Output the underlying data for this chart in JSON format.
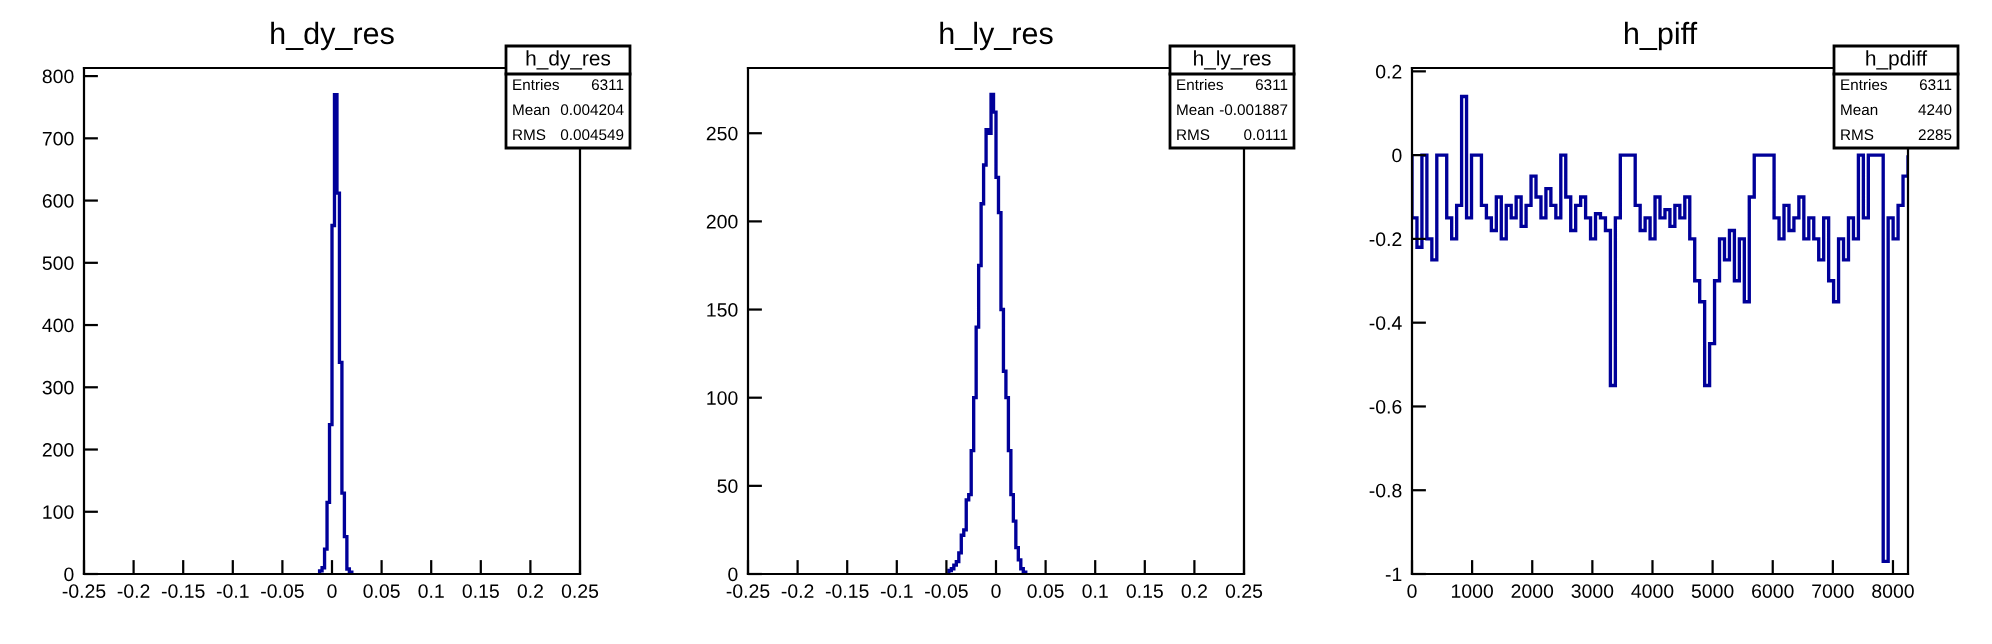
{
  "chart_data": [
    {
      "type": "histogram",
      "title": "h_dy_res",
      "color": "#000099",
      "annotations": [
        "h_dy_res",
        "Entries",
        "6311",
        "Mean",
        "0.004204",
        "RMS",
        "0.004549"
      ],
      "bins": [
        -0.0125,
        -0.01,
        -0.0075,
        -0.005,
        -0.0025,
        0,
        0.0025,
        0.005,
        0.0075,
        0.01,
        0.0125,
        0.015,
        0.0175,
        0.02
      ],
      "values": [
        5,
        10,
        40,
        115,
        240,
        560,
        770,
        612,
        340,
        130,
        60,
        8,
        3
      ],
      "xlim": [
        -0.25,
        0.25
      ],
      "xticks": [
        -0.25,
        -0.2,
        -0.15,
        -0.1,
        -0.05,
        0,
        0.05,
        0.1,
        0.15,
        0.2,
        0.25
      ],
      "ylim": [
        0,
        813
      ],
      "yticks": [
        0,
        100,
        200,
        300,
        400,
        500,
        600,
        700,
        800
      ],
      "grid": false,
      "legend": false
    },
    {
      "type": "histogram",
      "title": "h_ly_res",
      "color": "#000099",
      "annotations": [
        "h_ly_res",
        "Entries",
        "6311",
        "Mean",
        "-0.001887",
        "RMS",
        "0.0111"
      ],
      "bins": [
        -0.0475,
        -0.045,
        -0.0425,
        -0.04,
        -0.0375,
        -0.035,
        -0.0325,
        -0.03,
        -0.0275,
        -0.025,
        -0.0225,
        -0.02,
        -0.0175,
        -0.015,
        -0.0125,
        -0.01,
        -0.0075,
        -0.005,
        -0.0025,
        0,
        0.0025,
        0.005,
        0.0075,
        0.01,
        0.0125,
        0.015,
        0.0175,
        0.02,
        0.0225,
        0.025,
        0.0275,
        0.03
      ],
      "values": [
        2,
        3,
        5,
        7,
        12,
        22,
        25,
        42,
        45,
        70,
        100,
        140,
        175,
        210,
        232,
        252,
        250,
        272,
        262,
        225,
        205,
        150,
        115,
        100,
        70,
        45,
        30,
        15,
        8,
        3,
        1
      ],
      "xlim": [
        -0.25,
        0.25
      ],
      "xticks": [
        -0.25,
        -0.2,
        -0.15,
        -0.1,
        -0.05,
        0,
        0.05,
        0.1,
        0.15,
        0.2,
        0.25
      ],
      "ylim": [
        0,
        287
      ],
      "yticks": [
        0,
        50,
        100,
        150,
        200,
        250
      ],
      "grid": false,
      "legend": false
    },
    {
      "type": "histogram",
      "title": "h_piff",
      "color": "#000099",
      "annotations": [
        "h_pdiff",
        "Entries",
        "6311",
        "Mean",
        "4240",
        "RMS",
        "2285"
      ],
      "bins": [
        0,
        82.5,
        165,
        247.5,
        330,
        412.5,
        495,
        577.5,
        660,
        742.5,
        825,
        907.5,
        990,
        1072.5,
        1155,
        1237.5,
        1320,
        1402.5,
        1485,
        1567.5,
        1650,
        1732.5,
        1815,
        1897.5,
        1980,
        2062.5,
        2145,
        2227.5,
        2310,
        2392.5,
        2475,
        2557.5,
        2640,
        2722.5,
        2805,
        2887.5,
        2970,
        3052.5,
        3135,
        3217.5,
        3300,
        3382.5,
        3465,
        3547.5,
        3630,
        3712.5,
        3795,
        3877.5,
        3960,
        4042.5,
        4125,
        4207.5,
        4290,
        4372.5,
        4455,
        4537.5,
        4620,
        4702.5,
        4785,
        4867.5,
        4950,
        5032.5,
        5115,
        5197.5,
        5280,
        5362.5,
        5445,
        5527.5,
        5610,
        5692.5,
        5775,
        5857.5,
        5940,
        6022.5,
        6105,
        6187.5,
        6270,
        6352.5,
        6435,
        6517.5,
        6600,
        6682.5,
        6765,
        6847.5,
        6930,
        7012.5,
        7095,
        7177.5,
        7260,
        7342.5,
        7425,
        7507.5,
        7590,
        7672.5,
        7755,
        7837.5,
        7920,
        8002.5,
        8085,
        8167.5,
        8250
      ],
      "values": [
        -0.15,
        -0.22,
        0,
        -0.2,
        -0.25,
        0,
        0,
        -0.15,
        -0.2,
        -0.12,
        0.14,
        -0.15,
        0,
        0,
        -0.12,
        -0.15,
        -0.18,
        -0.1,
        -0.2,
        -0.12,
        -0.15,
        -0.1,
        -0.17,
        -0.12,
        -0.05,
        -0.1,
        -0.15,
        -0.08,
        -0.12,
        -0.15,
        0,
        -0.1,
        -0.18,
        -0.12,
        -0.1,
        -0.15,
        -0.2,
        -0.14,
        -0.15,
        -0.18,
        -0.55,
        -0.15,
        0,
        0,
        0,
        -0.12,
        -0.18,
        -0.15,
        -0.2,
        -0.1,
        -0.15,
        -0.13,
        -0.17,
        -0.12,
        -0.15,
        -0.1,
        -0.2,
        -0.3,
        -0.35,
        -0.55,
        -0.45,
        -0.3,
        -0.2,
        -0.25,
        -0.18,
        -0.3,
        -0.2,
        -0.35,
        -0.1,
        0,
        0,
        0,
        0,
        -0.15,
        -0.2,
        -0.12,
        -0.18,
        -0.15,
        -0.1,
        -0.2,
        -0.15,
        -0.2,
        -0.25,
        -0.15,
        -0.3,
        -0.35,
        -0.2,
        -0.25,
        -0.15,
        -0.2,
        0,
        -0.15,
        0,
        0,
        0,
        -0.97,
        -0.15,
        -0.2,
        -0.12,
        -0.05
      ],
      "xlim": [
        0,
        8250
      ],
      "xticks": [
        0,
        1000,
        2000,
        3000,
        4000,
        5000,
        6000,
        7000,
        8000
      ],
      "ylim": [
        -1,
        0.208
      ],
      "yticks": [
        -1,
        -0.8,
        -0.6,
        -0.4,
        -0.2,
        0,
        0.2
      ],
      "grid": false,
      "legend": false
    }
  ]
}
